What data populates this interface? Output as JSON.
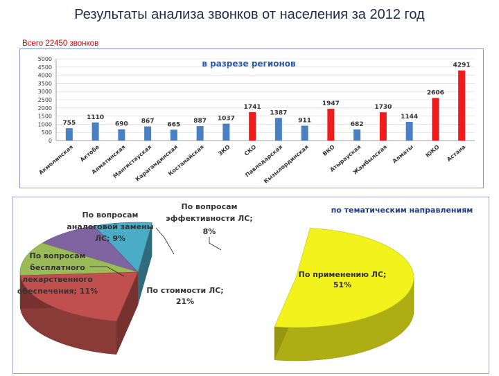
{
  "page": {
    "title": "Результаты анализа звонков от населения за 2012 год",
    "total": "Всего 22450 звонков"
  },
  "colors": {
    "blue": "#4a7fc1",
    "red": "#ee1c1c",
    "pie_title": "#1f3a8a",
    "bar_title": "#2a57a8"
  },
  "chart_data": [
    {
      "type": "bar",
      "title": "в разрезе регионов",
      "ylim": [
        0,
        5000
      ],
      "yticks": [
        0,
        500,
        1000,
        1500,
        2000,
        2500,
        3000,
        3500,
        4000,
        4500,
        5000
      ],
      "categories": [
        "Акмолинская",
        "Актобе",
        "Алматинская",
        "Мангистауская",
        "Карагандинская",
        "Костанайская",
        "ЗКО",
        "СКО",
        "Павлодарская",
        "Кызылординская",
        "ВКО",
        "Атырауская",
        "Жамбылская",
        "Алматы",
        "ЮКО",
        "Астана"
      ],
      "values": [
        755,
        1110,
        690,
        867,
        665,
        887,
        1037,
        1741,
        1387,
        911,
        1947,
        682,
        1730,
        1144,
        2606,
        4291
      ],
      "bar_colors": [
        "blue",
        "blue",
        "blue",
        "blue",
        "blue",
        "blue",
        "blue",
        "red",
        "blue",
        "blue",
        "red",
        "blue",
        "red",
        "blue",
        "red",
        "red"
      ],
      "xlabel": "",
      "ylabel": ""
    },
    {
      "type": "pie",
      "title": "по тематическим направлениям",
      "slices": [
        {
          "label": "По применению ЛС;",
          "value": 51,
          "pct": "51%",
          "color": "#f2f21c"
        },
        {
          "label": "По стоимости ЛС;",
          "value": 21,
          "pct": "21%",
          "color": "#c0504d"
        },
        {
          "label": "По вопросам бесплатного лекарственного обеспечения;",
          "value": 11,
          "pct": "11%",
          "color": "#9bbb59"
        },
        {
          "label": "По вопросам аналоговой замены ЛС;",
          "value": 9,
          "pct": "9%",
          "color": "#8064a2"
        },
        {
          "label": "По вопросам эффективности ЛС;",
          "value": 8,
          "pct": "8%",
          "color": "#4bacc6"
        }
      ]
    }
  ]
}
